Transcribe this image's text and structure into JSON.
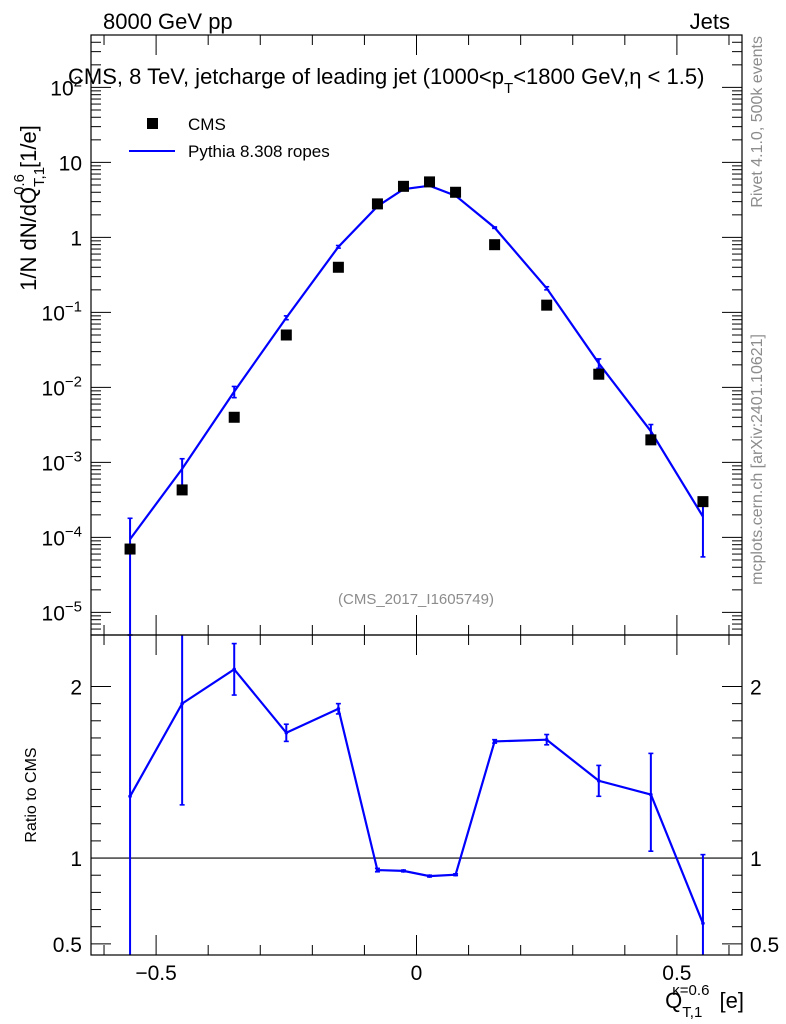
{
  "header": {
    "left": "8000 GeV pp",
    "right": "Jets",
    "title": "CMS, 8 TeV, jetcharge of leading jet (1000<p",
    "title_sub": "T",
    "title_rest": "<1800 GeV,η < 1.5)"
  },
  "side_text": {
    "rivet": "Rivet 4.1.0,  500k events",
    "mcplots": "mcplots.cern.ch [arXiv:2401.10621]"
  },
  "analysis_id": "(CMS_2017_I1605749)",
  "legend": [
    {
      "label": "CMS",
      "style": "marker",
      "color": "#000000"
    },
    {
      "label": "Pythia 8.308 ropes",
      "style": "line",
      "color": "#0000ff"
    }
  ],
  "colors": {
    "data": "#000000",
    "mc": "#0000ff"
  },
  "chart_data": [
    {
      "type": "scatter",
      "panel": "main",
      "yscale": "log",
      "ylabel": "1/N dN/dQ",
      "ylabel_sup": "0.6",
      "ylabel_sub": "T,1",
      "ylabel_unit": " [1/e]",
      "xlim": [
        -0.625,
        0.625
      ],
      "ylim": [
        5e-06,
        500
      ],
      "ytick_values": [
        1e-05,
        0.0001,
        0.001,
        0.01,
        0.1,
        1,
        10,
        100
      ],
      "ytick_labels": [
        {
          "base": "10",
          "exp": "−5"
        },
        {
          "base": "10",
          "exp": "−4"
        },
        {
          "base": "10",
          "exp": "−3"
        },
        {
          "base": "10",
          "exp": "−2"
        },
        {
          "base": "10",
          "exp": "−1"
        },
        {
          "base": "1",
          "exp": ""
        },
        {
          "base": "10",
          "exp": ""
        },
        {
          "base": "10",
          "exp": "2"
        }
      ],
      "series": [
        {
          "name": "CMS",
          "x": [
            -0.55,
            -0.45,
            -0.35,
            -0.25,
            -0.15,
            -0.075,
            -0.025,
            0.025,
            0.075,
            0.15,
            0.25,
            0.35,
            0.45,
            0.55
          ],
          "values": [
            7e-05,
            0.00043,
            0.004,
            0.05,
            0.4,
            2.8,
            4.8,
            5.5,
            4.0,
            0.8,
            0.125,
            0.015,
            0.002,
            0.0003
          ]
        },
        {
          "name": "Pythia 8.308 ropes",
          "x": [
            -0.55,
            -0.45,
            -0.35,
            -0.25,
            -0.15,
            -0.075,
            -0.025,
            0.025,
            0.075,
            0.15,
            0.25,
            0.35,
            0.45,
            0.55
          ],
          "values": [
            9.5e-05,
            0.00082,
            0.0088,
            0.085,
            0.75,
            2.6,
            4.4,
            4.9,
            3.6,
            1.35,
            0.21,
            0.021,
            0.0026,
            0.00019
          ],
          "err_low": [
            9.5e-05,
            0.0004,
            0.0015,
            0.005,
            0.03,
            0.05,
            0.05,
            0.05,
            0.05,
            0.03,
            0.01,
            0.003,
            0.0006,
            0.000135
          ],
          "err_high": [
            8.5e-05,
            0.0003,
            0.0015,
            0.005,
            0.03,
            0.05,
            0.05,
            0.05,
            0.05,
            0.03,
            0.01,
            0.003,
            0.0006,
            0.00012
          ]
        }
      ]
    },
    {
      "type": "line",
      "panel": "ratio",
      "ylabel": "Ratio to CMS",
      "xlabel": "Q",
      "xlabel_sup": "κ=0.6",
      "xlabel_sub": "T,1",
      "xlabel_unit": " [e]",
      "xlim": [
        -0.625,
        0.625
      ],
      "ylim": [
        0.435,
        2.3
      ],
      "ytick_values": [
        0.5,
        1,
        2
      ],
      "ytick_labels": [
        "0.5",
        "1",
        "2"
      ],
      "xtick_values": [
        -0.5,
        0,
        0.5
      ],
      "xtick_labels": [
        "−0.5",
        "0",
        "0.5"
      ],
      "reference_line": 1,
      "series": [
        {
          "name": "Pythia 8.308 ropes / CMS",
          "x": [
            -0.55,
            -0.45,
            -0.35,
            -0.25,
            -0.15,
            -0.075,
            -0.025,
            0.025,
            0.075,
            0.15,
            0.25,
            0.35,
            0.45,
            0.55
          ],
          "values": [
            1.36,
            1.9,
            2.1,
            1.73,
            1.87,
            0.93,
            0.925,
            0.895,
            0.903,
            1.68,
            1.69,
            1.45,
            1.37,
            0.62
          ],
          "err_low": [
            1.0,
            0.59,
            0.15,
            0.05,
            0.03,
            0.01,
            0.005,
            0.005,
            0.005,
            0.01,
            0.03,
            0.09,
            0.33,
            0.4
          ],
          "err_high": [
            1.0,
            0.6,
            0.15,
            0.05,
            0.03,
            0.01,
            0.005,
            0.005,
            0.005,
            0.01,
            0.03,
            0.09,
            0.24,
            0.4
          ]
        }
      ]
    }
  ]
}
